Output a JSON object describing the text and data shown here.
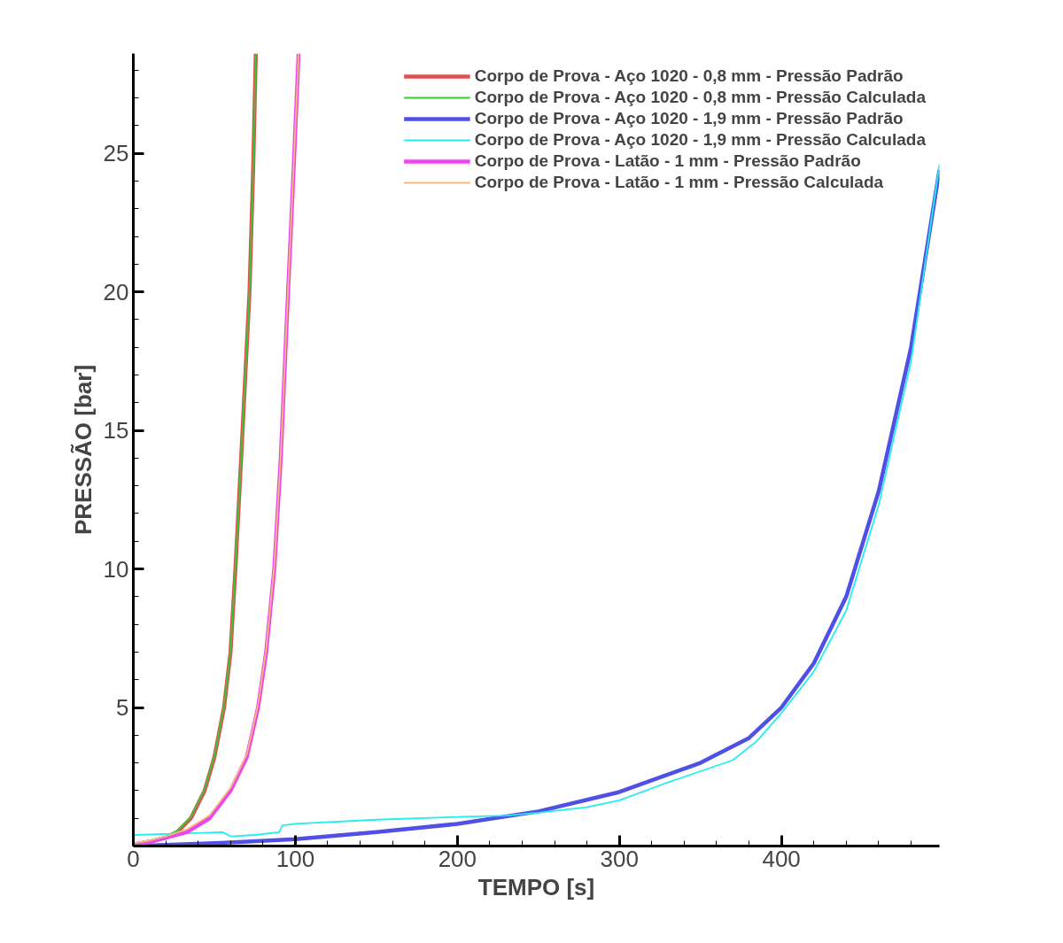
{
  "chart_data": {
    "type": "line",
    "xlabel": "TEMPO [s]",
    "ylabel": "PRESSÃO [bar]",
    "xlim": [
      0,
      497.5
    ],
    "ylim": [
      0,
      28.6
    ],
    "xticks": [
      0,
      100,
      200,
      300,
      400
    ],
    "yticks": [
      5,
      10,
      15,
      20,
      25
    ],
    "grid": false,
    "legend": "top right",
    "marker": "none",
    "line_style": "solid",
    "series": [
      {
        "name": "Corpo de Prova - Aço 1020 - 0,8 mm - Pressão Padrão",
        "color": "#e05050",
        "x": [
          0,
          10,
          20,
          27,
          35.5,
          44,
          50,
          56,
          60,
          63,
          67,
          71.7,
          74,
          75.6
        ],
        "values": [
          0.05,
          0.15,
          0.3,
          0.5,
          1.0,
          2.0,
          3.2,
          5.0,
          7.0,
          10.0,
          14.5,
          20.0,
          24.5,
          28.6
        ]
      },
      {
        "name": "Corpo de Prova - Aço 1020 - 0,8 mm - Pressão Calculada",
        "color": "#33cc33",
        "x": [
          0,
          10,
          20,
          27,
          35.5,
          44,
          50,
          56,
          60,
          63,
          67,
          71.7,
          74,
          75.6
        ],
        "values": [
          0.1,
          0.2,
          0.35,
          0.55,
          1.05,
          2.05,
          3.25,
          5.05,
          7.05,
          10.05,
          14.5,
          20.0,
          24.5,
          28.6
        ]
      },
      {
        "name": "Corpo de Prova - Aço 1020 - 1,9 mm - Pressão Padrão",
        "color": "#5050e6",
        "x": [
          0,
          50,
          100,
          150,
          200,
          250,
          300,
          350,
          380,
          400,
          420,
          440,
          460,
          480,
          497.5
        ],
        "values": [
          0,
          0.1,
          0.25,
          0.5,
          0.8,
          1.25,
          1.95,
          3.0,
          3.9,
          5.0,
          6.6,
          9.0,
          12.8,
          18.0,
          24.4
        ]
      },
      {
        "name": "Corpo de Prova - Aço 1020 - 1,9 mm - Pressão Calculada",
        "color": "#22eef0",
        "x": [
          0,
          30,
          55,
          60,
          75,
          90,
          92,
          100,
          150,
          200,
          230,
          250,
          280,
          300,
          330,
          350,
          370,
          385,
          400,
          420,
          440,
          460,
          480,
          497.5
        ],
        "values": [
          0.4,
          0.45,
          0.5,
          0.35,
          0.4,
          0.5,
          0.75,
          0.8,
          0.95,
          1.05,
          1.1,
          1.2,
          1.4,
          1.65,
          2.3,
          2.7,
          3.1,
          3.8,
          4.8,
          6.3,
          8.5,
          12.3,
          17.5,
          24.6
        ]
      },
      {
        "name": "Corpo de Prova - Latão - 1 mm - Pressão Padrão",
        "color": "#ee44ee",
        "x": [
          0,
          10,
          20,
          33,
          47,
          60,
          70,
          77,
          82,
          87,
          91,
          95.5,
          99,
          102
        ],
        "values": [
          0.05,
          0.15,
          0.3,
          0.5,
          1.0,
          2.0,
          3.2,
          5.0,
          7.0,
          10.0,
          14.0,
          20.0,
          24.5,
          28.6
        ]
      },
      {
        "name": "Corpo de Prova - Latão - 1 mm - Pressão Calculada",
        "color": "#f5b880",
        "x": [
          0,
          10,
          20,
          33,
          47,
          60,
          70,
          77,
          82,
          87,
          91,
          95.5,
          99,
          102
        ],
        "values": [
          0.1,
          0.2,
          0.35,
          0.6,
          1.1,
          2.1,
          3.3,
          5.1,
          7.1,
          10.1,
          14.1,
          20.1,
          24.6,
          28.6
        ]
      }
    ]
  }
}
